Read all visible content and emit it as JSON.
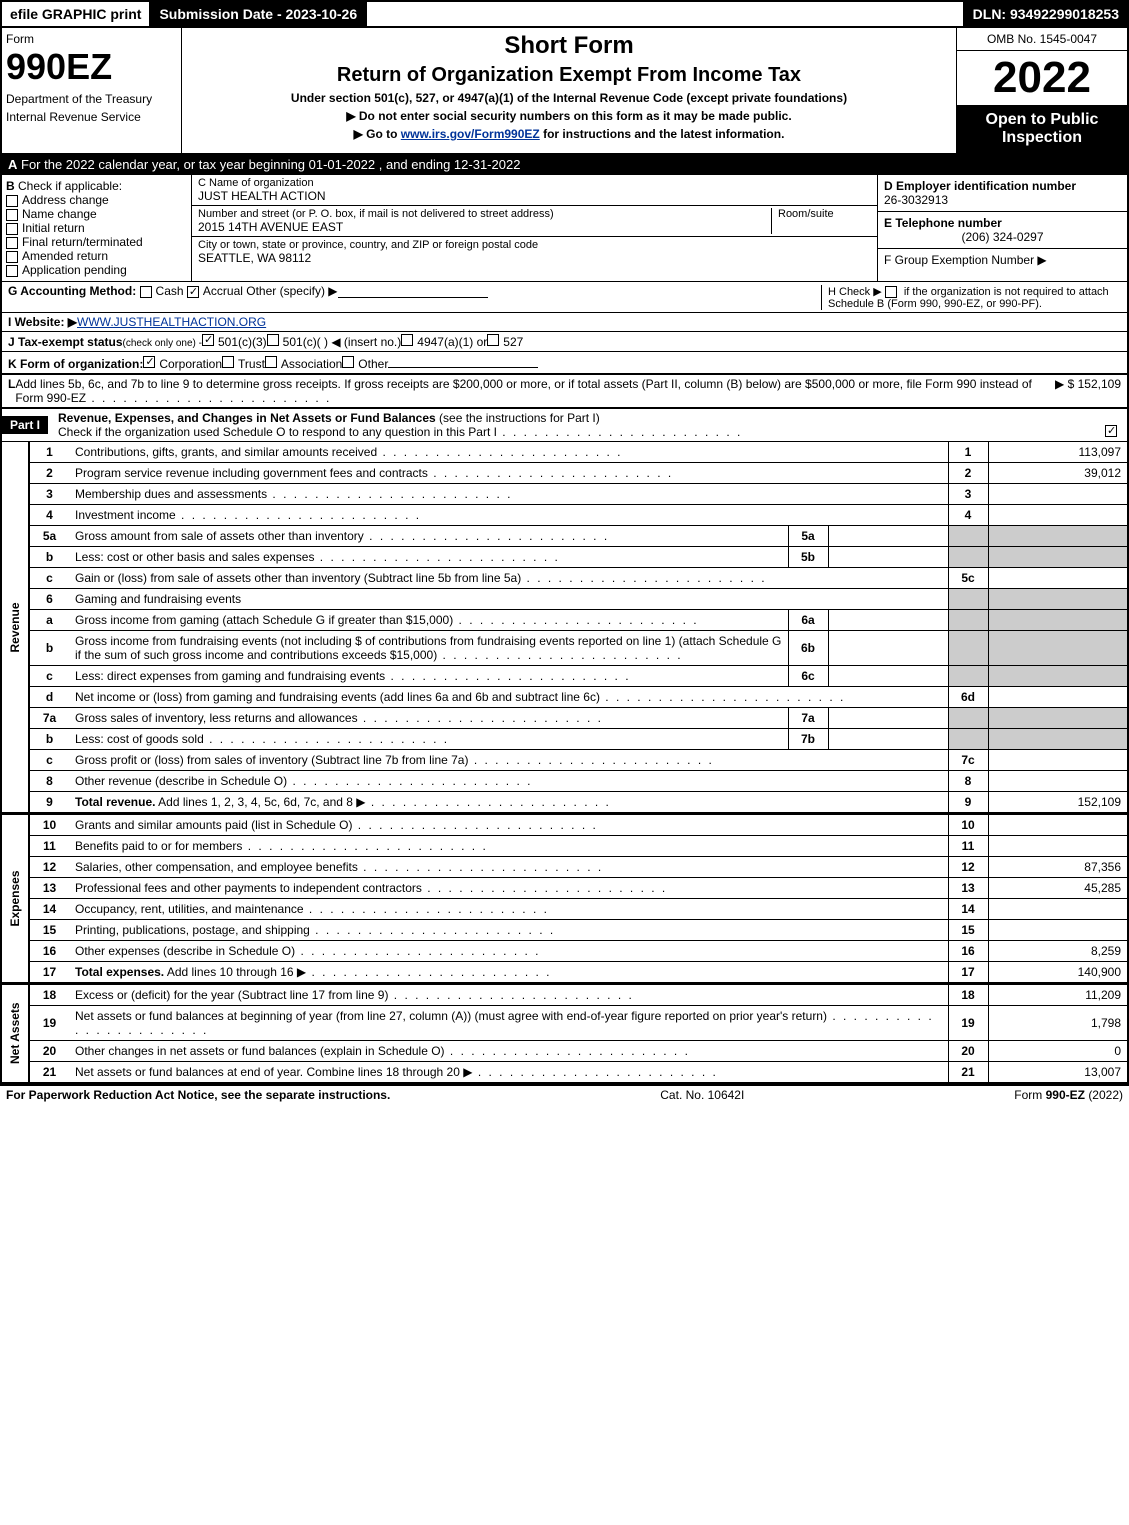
{
  "topbar": {
    "efile": "efile GRAPHIC print",
    "subdate": "Submission Date - 2023-10-26",
    "dln": "DLN: 93492299018253"
  },
  "header": {
    "form_label": "Form",
    "form_number": "990EZ",
    "dept": "Department of the Treasury",
    "irs": "Internal Revenue Service",
    "short_form": "Short Form",
    "title": "Return of Organization Exempt From Income Tax",
    "subtitle": "Under section 501(c), 527, or 4947(a)(1) of the Internal Revenue Code (except private foundations)",
    "instr1": "▶ Do not enter social security numbers on this form as it may be made public.",
    "instr2_pre": "▶ Go to ",
    "instr2_link": "www.irs.gov/Form990EZ",
    "instr2_post": " for instructions and the latest information.",
    "omb": "OMB No. 1545-0047",
    "year": "2022",
    "open": "Open to Public Inspection"
  },
  "rowA": {
    "label": "A",
    "text": "For the 2022 calendar year, or tax year beginning 01-01-2022 , and ending 12-31-2022"
  },
  "colB": {
    "label": "B",
    "heading": "Check if applicable:",
    "items": [
      "Address change",
      "Name change",
      "Initial return",
      "Final return/terminated",
      "Amended return",
      "Application pending"
    ]
  },
  "colC": {
    "name_label": "C Name of organization",
    "name": "JUST HEALTH ACTION",
    "street_label": "Number and street (or P. O. box, if mail is not delivered to street address)",
    "room_label": "Room/suite",
    "street": "2015 14TH AVENUE EAST",
    "city_label": "City or town, state or province, country, and ZIP or foreign postal code",
    "city": "SEATTLE, WA  98112"
  },
  "colD": {
    "ein_label": "D Employer identification number",
    "ein": "26-3032913",
    "tel_label": "E Telephone number",
    "tel": "(206) 324-0297",
    "group_label": "F Group Exemption Number ▶"
  },
  "rowG": {
    "label": "G Accounting Method:",
    "cash": "Cash",
    "accrual": "Accrual",
    "other": "Other (specify) ▶"
  },
  "rowH": {
    "text_pre": "H  Check ▶",
    "text_post": "if the organization is not required to attach Schedule B (Form 990, 990-EZ, or 990-PF)."
  },
  "rowI": {
    "label": "I Website: ▶",
    "url": "WWW.JUSTHEALTHACTION.ORG"
  },
  "rowJ": {
    "label": "J Tax-exempt status",
    "note": "(check only one) -",
    "opt1": "501(c)(3)",
    "opt2": "501(c)(  ) ◀ (insert no.)",
    "opt3": "4947(a)(1) or",
    "opt4": "527"
  },
  "rowK": {
    "label": "K Form of organization:",
    "opts": [
      "Corporation",
      "Trust",
      "Association",
      "Other"
    ]
  },
  "rowL": {
    "label": "L",
    "text": "Add lines 5b, 6c, and 7b to line 9 to determine gross receipts. If gross receipts are $200,000 or more, or if total assets (Part II, column (B) below) are $500,000 or more, file Form 990 instead of Form 990-EZ",
    "amount": "▶ $ 152,109"
  },
  "part1": {
    "label": "Part I",
    "title": "Revenue, Expenses, and Changes in Net Assets or Fund Balances",
    "note": "(see the instructions for Part I)",
    "check_text": "Check if the organization used Schedule O to respond to any question in this Part I"
  },
  "sections": {
    "revenue": "Revenue",
    "expenses": "Expenses",
    "netassets": "Net Assets"
  },
  "lines": [
    {
      "n": "1",
      "desc": "Contributions, gifts, grants, and similar amounts received",
      "ln": "1",
      "amt": "113,097"
    },
    {
      "n": "2",
      "desc": "Program service revenue including government fees and contracts",
      "ln": "2",
      "amt": "39,012"
    },
    {
      "n": "3",
      "desc": "Membership dues and assessments",
      "ln": "3",
      "amt": ""
    },
    {
      "n": "4",
      "desc": "Investment income",
      "ln": "4",
      "amt": ""
    },
    {
      "n": "5a",
      "desc": "Gross amount from sale of assets other than inventory",
      "sub": "5a"
    },
    {
      "n": "b",
      "desc": "Less: cost or other basis and sales expenses",
      "sub": "5b"
    },
    {
      "n": "c",
      "desc": "Gain or (loss) from sale of assets other than inventory (Subtract line 5b from line 5a)",
      "ln": "5c",
      "amt": ""
    },
    {
      "n": "6",
      "desc": "Gaming and fundraising events"
    },
    {
      "n": "a",
      "desc": "Gross income from gaming (attach Schedule G if greater than $15,000)",
      "sub": "6a"
    },
    {
      "n": "b",
      "desc": "Gross income from fundraising events (not including $                    of contributions from fundraising events reported on line 1) (attach Schedule G if the sum of such gross income and contributions exceeds $15,000)",
      "sub": "6b"
    },
    {
      "n": "c",
      "desc": "Less: direct expenses from gaming and fundraising events",
      "sub": "6c"
    },
    {
      "n": "d",
      "desc": "Net income or (loss) from gaming and fundraising events (add lines 6a and 6b and subtract line 6c)",
      "ln": "6d",
      "amt": ""
    },
    {
      "n": "7a",
      "desc": "Gross sales of inventory, less returns and allowances",
      "sub": "7a"
    },
    {
      "n": "b",
      "desc": "Less: cost of goods sold",
      "sub": "7b"
    },
    {
      "n": "c",
      "desc": "Gross profit or (loss) from sales of inventory (Subtract line 7b from line 7a)",
      "ln": "7c",
      "amt": ""
    },
    {
      "n": "8",
      "desc": "Other revenue (describe in Schedule O)",
      "ln": "8",
      "amt": ""
    },
    {
      "n": "9",
      "desc": "Total revenue. Add lines 1, 2, 3, 4, 5c, 6d, 7c, and 8",
      "ln": "9",
      "amt": "152,109",
      "bold": true,
      "arrow": true
    }
  ],
  "lines_exp": [
    {
      "n": "10",
      "desc": "Grants and similar amounts paid (list in Schedule O)",
      "ln": "10",
      "amt": ""
    },
    {
      "n": "11",
      "desc": "Benefits paid to or for members",
      "ln": "11",
      "amt": ""
    },
    {
      "n": "12",
      "desc": "Salaries, other compensation, and employee benefits",
      "ln": "12",
      "amt": "87,356"
    },
    {
      "n": "13",
      "desc": "Professional fees and other payments to independent contractors",
      "ln": "13",
      "amt": "45,285"
    },
    {
      "n": "14",
      "desc": "Occupancy, rent, utilities, and maintenance",
      "ln": "14",
      "amt": ""
    },
    {
      "n": "15",
      "desc": "Printing, publications, postage, and shipping",
      "ln": "15",
      "amt": ""
    },
    {
      "n": "16",
      "desc": "Other expenses (describe in Schedule O)",
      "ln": "16",
      "amt": "8,259"
    },
    {
      "n": "17",
      "desc": "Total expenses. Add lines 10 through 16",
      "ln": "17",
      "amt": "140,900",
      "bold": true,
      "arrow": true
    }
  ],
  "lines_net": [
    {
      "n": "18",
      "desc": "Excess or (deficit) for the year (Subtract line 17 from line 9)",
      "ln": "18",
      "amt": "11,209"
    },
    {
      "n": "19",
      "desc": "Net assets or fund balances at beginning of year (from line 27, column (A)) (must agree with end-of-year figure reported on prior year's return)",
      "ln": "19",
      "amt": "1,798"
    },
    {
      "n": "20",
      "desc": "Other changes in net assets or fund balances (explain in Schedule O)",
      "ln": "20",
      "amt": "0"
    },
    {
      "n": "21",
      "desc": "Net assets or fund balances at end of year. Combine lines 18 through 20",
      "ln": "21",
      "amt": "13,007",
      "arrow": true
    }
  ],
  "footer": {
    "left": "For Paperwork Reduction Act Notice, see the separate instructions.",
    "center": "Cat. No. 10642I",
    "right_pre": "Form ",
    "right_form": "990-EZ",
    "right_year": " (2022)"
  },
  "colors": {
    "black": "#000000",
    "white": "#ffffff",
    "shade": "#cccccc",
    "link": "#003399"
  }
}
